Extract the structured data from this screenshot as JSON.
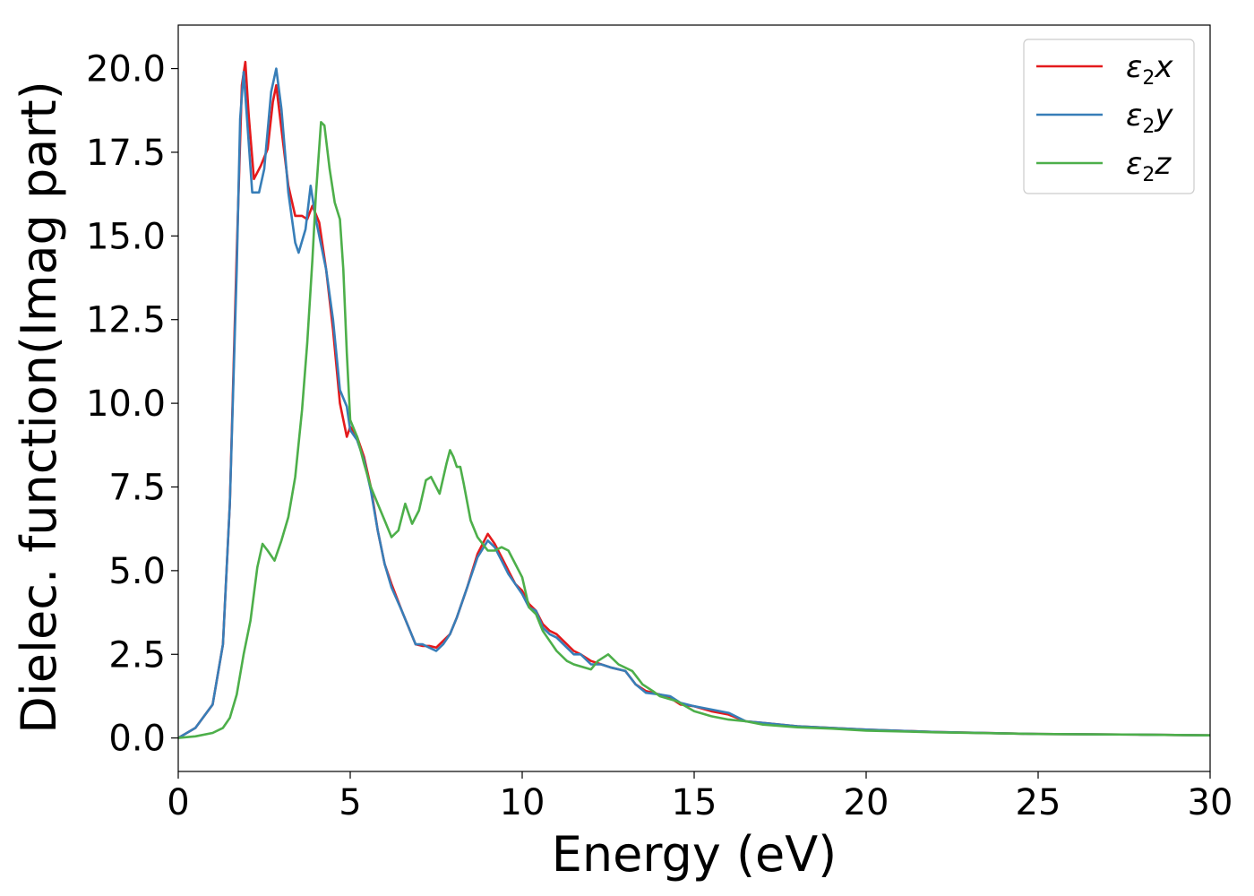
{
  "chart_data": {
    "type": "line",
    "title": "",
    "xlabel": "Energy (eV)",
    "ylabel": "Dielec. function(Imag part)",
    "xlim": [
      0,
      30
    ],
    "ylim": [
      -1.0,
      21.3
    ],
    "xticks": [
      0,
      5,
      10,
      15,
      20,
      25,
      30
    ],
    "xtick_labels": [
      "0",
      "5",
      "10",
      "15",
      "20",
      "25",
      "30"
    ],
    "yticks": [
      0,
      2.5,
      5,
      7.5,
      10,
      12.5,
      15,
      17.5,
      20
    ],
    "ytick_labels": [
      "0.0",
      "2.5",
      "5.0",
      "7.5",
      "10.0",
      "12.5",
      "15.0",
      "17.5",
      "20.0"
    ],
    "grid": false,
    "legend_position": "top-right",
    "series": [
      {
        "name": "ε₂x",
        "label_base": "ε",
        "label_sub": "2",
        "label_var": "x",
        "color": "#e41a1c",
        "points": [
          [
            0,
            0
          ],
          [
            0.5,
            0.3
          ],
          [
            1.0,
            1.0
          ],
          [
            1.3,
            2.8
          ],
          [
            1.5,
            7.0
          ],
          [
            1.7,
            14.5
          ],
          [
            1.85,
            19.5
          ],
          [
            1.95,
            20.2
          ],
          [
            2.05,
            18.6
          ],
          [
            2.2,
            16.7
          ],
          [
            2.4,
            17.1
          ],
          [
            2.6,
            17.6
          ],
          [
            2.75,
            19.0
          ],
          [
            2.85,
            19.5
          ],
          [
            3.0,
            18.2
          ],
          [
            3.2,
            16.5
          ],
          [
            3.4,
            15.6
          ],
          [
            3.6,
            15.6
          ],
          [
            3.75,
            15.5
          ],
          [
            3.9,
            15.9
          ],
          [
            4.1,
            15.4
          ],
          [
            4.3,
            14.0
          ],
          [
            4.5,
            12.2
          ],
          [
            4.7,
            10.0
          ],
          [
            4.9,
            9.0
          ],
          [
            5.0,
            9.3
          ],
          [
            5.2,
            9.0
          ],
          [
            5.4,
            8.4
          ],
          [
            5.6,
            7.5
          ],
          [
            5.8,
            6.2
          ],
          [
            6.0,
            5.2
          ],
          [
            6.2,
            4.6
          ],
          [
            6.5,
            3.8
          ],
          [
            6.7,
            3.3
          ],
          [
            6.9,
            2.8
          ],
          [
            7.1,
            2.75
          ],
          [
            7.3,
            2.75
          ],
          [
            7.5,
            2.7
          ],
          [
            7.7,
            2.9
          ],
          [
            7.9,
            3.1
          ],
          [
            8.1,
            3.6
          ],
          [
            8.4,
            4.5
          ],
          [
            8.7,
            5.5
          ],
          [
            9.0,
            6.1
          ],
          [
            9.2,
            5.8
          ],
          [
            9.4,
            5.4
          ],
          [
            9.6,
            5.0
          ],
          [
            9.8,
            4.6
          ],
          [
            10.0,
            4.4
          ],
          [
            10.2,
            4.0
          ],
          [
            10.4,
            3.8
          ],
          [
            10.6,
            3.4
          ],
          [
            10.8,
            3.2
          ],
          [
            11.0,
            3.1
          ],
          [
            11.3,
            2.8
          ],
          [
            11.5,
            2.6
          ],
          [
            11.7,
            2.5
          ],
          [
            12.0,
            2.3
          ],
          [
            12.3,
            2.2
          ],
          [
            12.6,
            2.1
          ],
          [
            13.0,
            2.0
          ],
          [
            13.3,
            1.6
          ],
          [
            13.6,
            1.4
          ],
          [
            14.0,
            1.3
          ],
          [
            14.3,
            1.2
          ],
          [
            14.6,
            1.0
          ],
          [
            15.0,
            0.95
          ],
          [
            15.5,
            0.8
          ],
          [
            16.0,
            0.7
          ],
          [
            16.5,
            0.5
          ],
          [
            17.0,
            0.45
          ],
          [
            18.0,
            0.35
          ],
          [
            19.0,
            0.3
          ],
          [
            20.0,
            0.25
          ],
          [
            22.0,
            0.18
          ],
          [
            25.0,
            0.12
          ],
          [
            28.0,
            0.1
          ],
          [
            30.0,
            0.08
          ]
        ]
      },
      {
        "name": "ε₂y",
        "label_base": "ε",
        "label_sub": "2",
        "label_var": "y",
        "color": "#377eb8",
        "points": [
          [
            0,
            0
          ],
          [
            0.5,
            0.3
          ],
          [
            1.0,
            1.0
          ],
          [
            1.3,
            2.8
          ],
          [
            1.5,
            7.0
          ],
          [
            1.7,
            14.0
          ],
          [
            1.8,
            18.5
          ],
          [
            1.9,
            19.9
          ],
          [
            2.0,
            18.5
          ],
          [
            2.15,
            16.3
          ],
          [
            2.35,
            16.3
          ],
          [
            2.5,
            17.0
          ],
          [
            2.7,
            19.3
          ],
          [
            2.85,
            20.0
          ],
          [
            3.0,
            18.8
          ],
          [
            3.2,
            16.3
          ],
          [
            3.4,
            14.8
          ],
          [
            3.5,
            14.5
          ],
          [
            3.7,
            15.2
          ],
          [
            3.85,
            16.5
          ],
          [
            4.0,
            15.5
          ],
          [
            4.3,
            14.0
          ],
          [
            4.5,
            12.5
          ],
          [
            4.7,
            10.4
          ],
          [
            4.9,
            9.9
          ],
          [
            5.0,
            9.2
          ],
          [
            5.2,
            8.9
          ],
          [
            5.4,
            8.3
          ],
          [
            5.6,
            7.4
          ],
          [
            5.8,
            6.2
          ],
          [
            6.0,
            5.2
          ],
          [
            6.2,
            4.5
          ],
          [
            6.5,
            3.8
          ],
          [
            6.7,
            3.3
          ],
          [
            6.9,
            2.8
          ],
          [
            7.1,
            2.8
          ],
          [
            7.3,
            2.7
          ],
          [
            7.5,
            2.6
          ],
          [
            7.7,
            2.8
          ],
          [
            7.9,
            3.1
          ],
          [
            8.1,
            3.6
          ],
          [
            8.4,
            4.5
          ],
          [
            8.7,
            5.4
          ],
          [
            9.0,
            5.9
          ],
          [
            9.2,
            5.7
          ],
          [
            9.4,
            5.3
          ],
          [
            9.6,
            4.9
          ],
          [
            9.8,
            4.6
          ],
          [
            10.0,
            4.3
          ],
          [
            10.2,
            3.9
          ],
          [
            10.4,
            3.8
          ],
          [
            10.6,
            3.3
          ],
          [
            10.8,
            3.1
          ],
          [
            11.0,
            3.0
          ],
          [
            11.3,
            2.7
          ],
          [
            11.5,
            2.5
          ],
          [
            11.7,
            2.5
          ],
          [
            12.0,
            2.2
          ],
          [
            12.3,
            2.2
          ],
          [
            12.6,
            2.1
          ],
          [
            13.0,
            2.0
          ],
          [
            13.3,
            1.6
          ],
          [
            13.6,
            1.35
          ],
          [
            14.0,
            1.3
          ],
          [
            14.3,
            1.25
          ],
          [
            14.6,
            1.05
          ],
          [
            15.0,
            0.95
          ],
          [
            15.5,
            0.85
          ],
          [
            16.0,
            0.75
          ],
          [
            16.5,
            0.5
          ],
          [
            17.0,
            0.45
          ],
          [
            18.0,
            0.35
          ],
          [
            19.0,
            0.3
          ],
          [
            20.0,
            0.25
          ],
          [
            22.0,
            0.18
          ],
          [
            25.0,
            0.12
          ],
          [
            28.0,
            0.1
          ],
          [
            30.0,
            0.08
          ]
        ]
      },
      {
        "name": "ε₂z",
        "label_base": "ε",
        "label_sub": "2",
        "label_var": "z",
        "color": "#4daf4a",
        "points": [
          [
            0,
            0
          ],
          [
            0.5,
            0.05
          ],
          [
            1.0,
            0.15
          ],
          [
            1.3,
            0.3
          ],
          [
            1.5,
            0.6
          ],
          [
            1.7,
            1.3
          ],
          [
            1.9,
            2.5
          ],
          [
            2.1,
            3.5
          ],
          [
            2.3,
            5.1
          ],
          [
            2.45,
            5.8
          ],
          [
            2.6,
            5.6
          ],
          [
            2.8,
            5.3
          ],
          [
            3.0,
            5.9
          ],
          [
            3.2,
            6.6
          ],
          [
            3.4,
            7.8
          ],
          [
            3.6,
            9.8
          ],
          [
            3.75,
            11.8
          ],
          [
            3.9,
            14.3
          ],
          [
            4.0,
            16.2
          ],
          [
            4.15,
            18.4
          ],
          [
            4.25,
            18.3
          ],
          [
            4.4,
            17.0
          ],
          [
            4.55,
            16.0
          ],
          [
            4.7,
            15.5
          ],
          [
            4.8,
            14.0
          ],
          [
            4.9,
            11.5
          ],
          [
            5.0,
            9.5
          ],
          [
            5.2,
            9.0
          ],
          [
            5.4,
            8.2
          ],
          [
            5.6,
            7.5
          ],
          [
            5.8,
            7.0
          ],
          [
            6.0,
            6.5
          ],
          [
            6.2,
            6.0
          ],
          [
            6.4,
            6.2
          ],
          [
            6.6,
            7.0
          ],
          [
            6.8,
            6.4
          ],
          [
            7.0,
            6.8
          ],
          [
            7.2,
            7.7
          ],
          [
            7.35,
            7.8
          ],
          [
            7.6,
            7.3
          ],
          [
            7.8,
            8.2
          ],
          [
            7.9,
            8.6
          ],
          [
            8.0,
            8.4
          ],
          [
            8.1,
            8.1
          ],
          [
            8.2,
            8.1
          ],
          [
            8.3,
            7.6
          ],
          [
            8.5,
            6.5
          ],
          [
            8.7,
            6.0
          ],
          [
            9.0,
            5.6
          ],
          [
            9.2,
            5.6
          ],
          [
            9.4,
            5.7
          ],
          [
            9.6,
            5.6
          ],
          [
            9.8,
            5.2
          ],
          [
            10.0,
            4.8
          ],
          [
            10.2,
            3.9
          ],
          [
            10.4,
            3.7
          ],
          [
            10.6,
            3.2
          ],
          [
            10.8,
            2.9
          ],
          [
            11.0,
            2.6
          ],
          [
            11.3,
            2.3
          ],
          [
            11.5,
            2.2
          ],
          [
            12.0,
            2.05
          ],
          [
            12.2,
            2.3
          ],
          [
            12.5,
            2.5
          ],
          [
            12.8,
            2.2
          ],
          [
            13.2,
            2.0
          ],
          [
            13.5,
            1.6
          ],
          [
            13.8,
            1.4
          ],
          [
            14.0,
            1.25
          ],
          [
            14.5,
            1.1
          ],
          [
            15.0,
            0.8
          ],
          [
            15.5,
            0.65
          ],
          [
            16.0,
            0.55
          ],
          [
            16.5,
            0.5
          ],
          [
            17.0,
            0.4
          ],
          [
            18.0,
            0.32
          ],
          [
            19.0,
            0.28
          ],
          [
            20.0,
            0.22
          ],
          [
            22.0,
            0.17
          ],
          [
            25.0,
            0.12
          ],
          [
            28.0,
            0.1
          ],
          [
            30.0,
            0.08
          ]
        ]
      }
    ]
  }
}
